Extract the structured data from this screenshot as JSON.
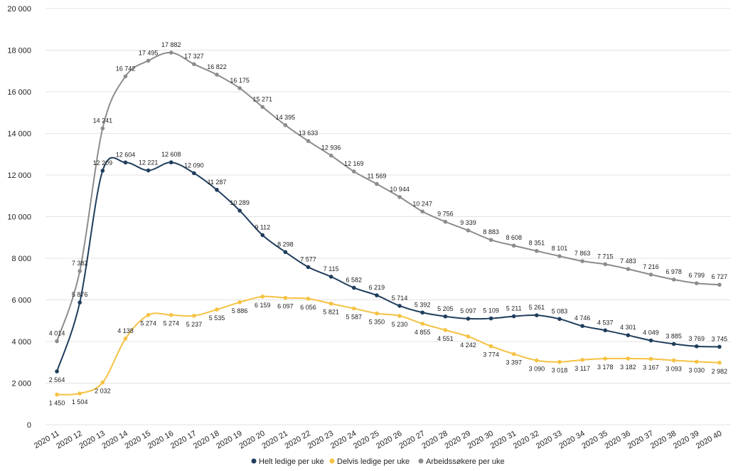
{
  "chart_data": {
    "type": "line",
    "categories": [
      "2020 11",
      "2020 12",
      "2020 13",
      "2020 14",
      "2020 15",
      "2020 16",
      "2020 17",
      "2020 18",
      "2020 19",
      "2020 20",
      "2020 21",
      "2020 22",
      "2020 23",
      "2020 24",
      "2020 25",
      "2020 26",
      "2020 27",
      "2020 28",
      "2020 29",
      "2020 30",
      "2020 31",
      "2020 32",
      "2020 33",
      "2020 34",
      "2020 35",
      "2020 36",
      "2020 37",
      "2020 38",
      "2020 39",
      "2020 40"
    ],
    "ylim": [
      0,
      20000
    ],
    "yticks": [
      0,
      2000,
      4000,
      6000,
      8000,
      10000,
      12000,
      14000,
      16000,
      18000,
      20000
    ],
    "ytick_labels": [
      "0",
      "2 000",
      "4 000",
      "6 000",
      "8 000",
      "10 000",
      "12 000",
      "14 000",
      "16 000",
      "18 000",
      "20 000"
    ],
    "grid": true,
    "legend_position": "bottom-center",
    "series": [
      {
        "name": "Helt ledige per uke",
        "color": "#1f3d5c",
        "values": [
          2564,
          5876,
          12209,
          12604,
          12221,
          12608,
          12090,
          11287,
          10289,
          9112,
          8298,
          7577,
          7115,
          6582,
          6219,
          5714,
          5392,
          5205,
          5097,
          5109,
          5211,
          5261,
          5083,
          4746,
          4537,
          4301,
          4049,
          3885,
          3769,
          3745
        ],
        "labels": [
          "2 564",
          "5 876",
          "12 209",
          "12 604",
          "12 221",
          "12 608",
          "12 090",
          "11 287",
          "10 289",
          "9 112",
          "8 298",
          "7 577",
          "7 115",
          "6 582",
          "6 219",
          "5 714",
          "5 392",
          "5 205",
          "5 097",
          "5 109",
          "5 211",
          "5 261",
          "5 083",
          "4 746",
          "4 537",
          "4 301",
          "4 049",
          "3 885",
          "3 769",
          "3 745"
        ]
      },
      {
        "name": "Delvis ledige per uke",
        "color": "#f5c242",
        "values": [
          1450,
          1504,
          2032,
          4138,
          5274,
          5274,
          5237,
          5535,
          5886,
          6159,
          6097,
          6056,
          5821,
          5587,
          5350,
          5230,
          4855,
          4551,
          4242,
          3774,
          3397,
          3090,
          3018,
          3117,
          3178,
          3182,
          3167,
          3093,
          3030,
          2982
        ],
        "labels": [
          "1 450",
          "1 504",
          "2 032",
          "4 138",
          "5 274",
          "5 274",
          "5 237",
          "5 535",
          "5 886",
          "6 159",
          "6 097",
          "6 056",
          "5 821",
          "5 587",
          "5 350",
          "5 230",
          "4 855",
          "4 551",
          "4 242",
          "3 774",
          "3 397",
          "3 090",
          "3 018",
          "3 117",
          "3 178",
          "3 182",
          "3 167",
          "3 093",
          "3 030",
          "2 982"
        ]
      },
      {
        "name": "Arbeidssøkere per uke",
        "color": "#8c8c8c",
        "values": [
          4014,
          7382,
          14241,
          16742,
          17495,
          17882,
          17327,
          16822,
          16175,
          15271,
          14395,
          13633,
          12936,
          12169,
          11569,
          10944,
          10247,
          9756,
          9339,
          8883,
          8608,
          8351,
          8101,
          7863,
          7715,
          7483,
          7216,
          6978,
          6799,
          6727
        ],
        "labels": [
          "4 014",
          "7 382",
          "14 241",
          "16 742",
          "17 495",
          "17 882",
          "17 327",
          "16 822",
          "16 175",
          "15 271",
          "14 395",
          "13 633",
          "12 936",
          "12 169",
          "11 569",
          "10 944",
          "10 247",
          "9 756",
          "9 339",
          "8 883",
          "8 608",
          "8 351",
          "8 101",
          "7 863",
          "7 715",
          "7 483",
          "7 216",
          "6 978",
          "6 799",
          "6 727"
        ]
      }
    ]
  }
}
